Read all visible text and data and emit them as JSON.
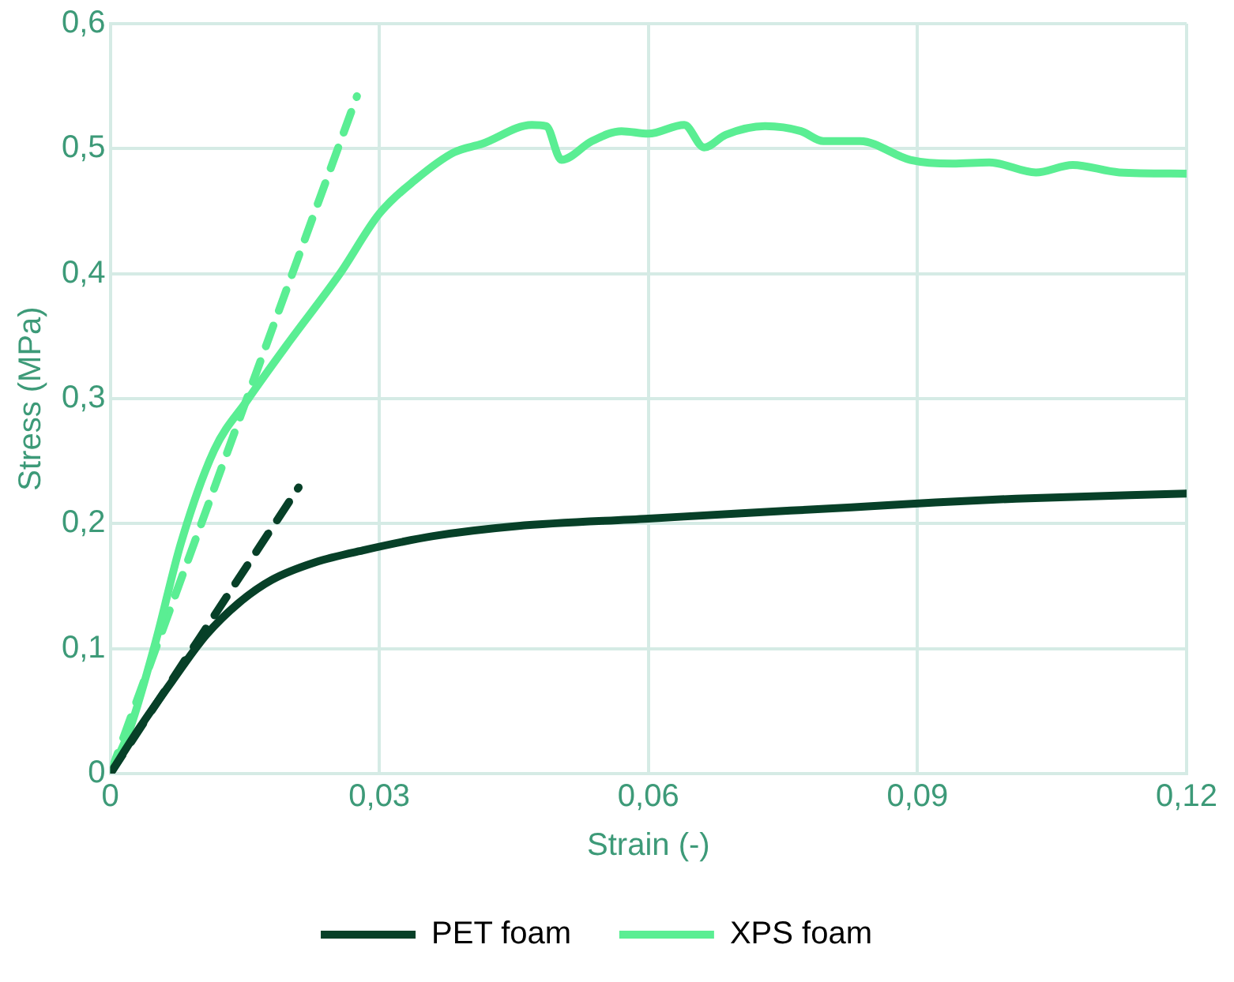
{
  "chart_data": {
    "type": "line",
    "xlabel": "Strain (-)",
    "ylabel": "Stress (MPa)",
    "xlim": [
      0,
      0.12
    ],
    "ylim": [
      0,
      0.6
    ],
    "xticks": [
      {
        "value": 0,
        "label": "0"
      },
      {
        "value": 0.03,
        "label": "0,03"
      },
      {
        "value": 0.06,
        "label": "0,06"
      },
      {
        "value": 0.09,
        "label": "0,09"
      },
      {
        "value": 0.12,
        "label": "0,12"
      }
    ],
    "yticks": [
      {
        "value": 0,
        "label": "0"
      },
      {
        "value": 0.1,
        "label": "0,1"
      },
      {
        "value": 0.2,
        "label": "0,2"
      },
      {
        "value": 0.3,
        "label": "0,3"
      },
      {
        "value": 0.4,
        "label": "0,4"
      },
      {
        "value": 0.5,
        "label": "0,5"
      },
      {
        "value": 0.6,
        "label": "0,6"
      }
    ],
    "grid": true,
    "legend": "bottom",
    "marker": "none",
    "series": [
      {
        "name": "PET foam",
        "color": "#074028",
        "line_style": "solid",
        "x": [
          0,
          0.0032,
          0.0069,
          0.0107,
          0.0144,
          0.018,
          0.0228,
          0.0284,
          0.036,
          0.0453,
          0.06,
          0.0696,
          0.0826,
          0.092,
          0.101,
          0.12
        ],
        "values": [
          0,
          0.036,
          0.074,
          0.111,
          0.137,
          0.155,
          0.169,
          0.179,
          0.19,
          0.198,
          0.204,
          0.208,
          0.213,
          0.217,
          0.22,
          0.224
        ]
      },
      {
        "name": "XPS foam",
        "color": "#5aee93",
        "line_style": "solid",
        "x": [
          0,
          0.0022,
          0.005,
          0.0079,
          0.0116,
          0.0153,
          0.02,
          0.0256,
          0.03,
          0.034,
          0.0383,
          0.0415,
          0.047,
          0.0486,
          0.0503,
          0.0537,
          0.057,
          0.06,
          0.064,
          0.0662,
          0.0686,
          0.073,
          0.077,
          0.0795,
          0.0836,
          0.0892,
          0.0939,
          0.098,
          0.1032,
          0.1073,
          0.1125,
          0.12
        ],
        "values": [
          0,
          0.036,
          0.104,
          0.185,
          0.259,
          0.299,
          0.346,
          0.4,
          0.448,
          0.475,
          0.497,
          0.504,
          0.519,
          0.518,
          0.491,
          0.506,
          0.514,
          0.512,
          0.519,
          0.501,
          0.511,
          0.518,
          0.514,
          0.506,
          0.506,
          0.491,
          0.488,
          0.489,
          0.481,
          0.487,
          0.481,
          0.48
        ]
      },
      {
        "color": "#074028",
        "line_style": "dashed",
        "x": [
          0,
          0.021
        ],
        "values": [
          0,
          0.229
        ]
      },
      {
        "color": "#5aee93",
        "line_style": "dashed",
        "x": [
          0,
          0.0275
        ],
        "values": [
          0,
          0.542
        ]
      }
    ]
  }
}
